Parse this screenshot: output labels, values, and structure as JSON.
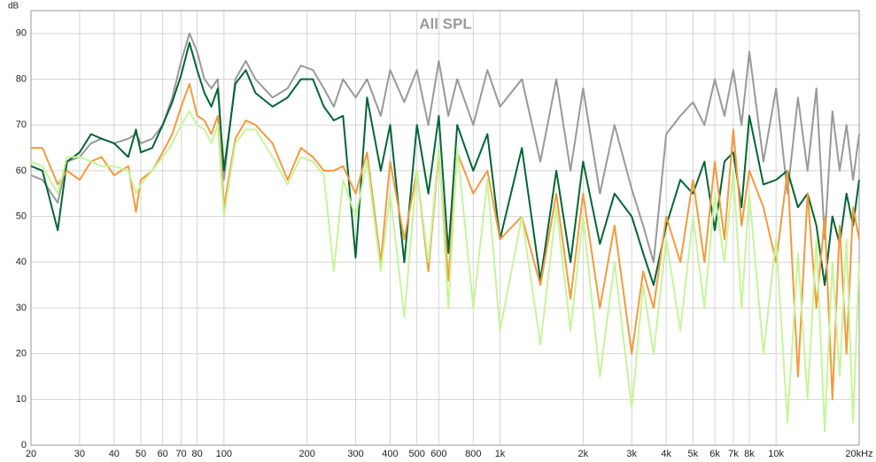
{
  "chart_data": {
    "type": "line",
    "title": "All SPL",
    "y_label": "dB",
    "x": [
      20,
      22,
      25,
      27,
      30,
      33,
      36,
      40,
      45,
      48,
      50,
      55,
      60,
      65,
      70,
      75,
      80,
      85,
      90,
      95,
      100,
      110,
      120,
      130,
      150,
      170,
      190,
      210,
      230,
      250,
      270,
      300,
      330,
      370,
      400,
      450,
      500,
      550,
      600,
      650,
      700,
      800,
      900,
      1000,
      1200,
      1400,
      1600,
      1800,
      2000,
      2300,
      2600,
      3000,
      3300,
      3600,
      4000,
      4500,
      5000,
      5500,
      6000,
      6500,
      7000,
      7500,
      8000,
      9000,
      10000,
      11000,
      12000,
      13000,
      14000,
      15000,
      16000,
      17000,
      18000,
      19000,
      20000
    ],
    "series": [
      {
        "color": "#999999",
        "values": [
          59,
          58,
          53,
          62,
          63,
          66,
          67,
          66,
          67,
          68,
          66,
          67,
          70,
          76,
          84,
          90,
          86,
          80,
          78,
          80,
          58,
          80,
          84,
          80,
          76,
          78,
          83,
          82,
          78,
          74,
          80,
          76,
          80,
          72,
          82,
          75,
          82,
          70,
          84,
          72,
          80,
          70,
          82,
          74,
          80,
          62,
          80,
          60,
          78,
          55,
          70,
          56,
          48,
          40,
          68,
          72,
          75,
          70,
          80,
          72,
          82,
          70,
          86,
          62,
          78,
          55,
          76,
          60,
          78,
          45,
          73,
          60,
          70,
          58,
          68
        ]
      },
      {
        "color": "#006633",
        "values": [
          61,
          60,
          47,
          62,
          64,
          68,
          67,
          66,
          63,
          69,
          64,
          65,
          70,
          75,
          81,
          88,
          82,
          77,
          74,
          78,
          60,
          79,
          82,
          77,
          74,
          76,
          80,
          80,
          74,
          71,
          72,
          41,
          76,
          60,
          70,
          40,
          70,
          55,
          72,
          42,
          70,
          60,
          68,
          45,
          65,
          36,
          60,
          40,
          62,
          44,
          55,
          50,
          42,
          35,
          48,
          58,
          55,
          62,
          47,
          62,
          64,
          52,
          72,
          57,
          58,
          60,
          52,
          55,
          48,
          35,
          50,
          44,
          55,
          48,
          58
        ]
      },
      {
        "color": "#f39a3c",
        "values": [
          65,
          65,
          57,
          60,
          58,
          62,
          63,
          59,
          61,
          51,
          58,
          60,
          64,
          68,
          74,
          79,
          72,
          71,
          68,
          72,
          52,
          67,
          71,
          70,
          66,
          58,
          65,
          63,
          60,
          60,
          61,
          55,
          64,
          40,
          62,
          45,
          60,
          38,
          64,
          36,
          64,
          55,
          60,
          45,
          50,
          35,
          55,
          32,
          55,
          30,
          48,
          20,
          38,
          30,
          50,
          40,
          58,
          40,
          62,
          45,
          69,
          48,
          60,
          52,
          40,
          60,
          15,
          55,
          30,
          50,
          10,
          48,
          20,
          52,
          45
        ]
      },
      {
        "color": "#c6f59a",
        "values": [
          62,
          61,
          55,
          63,
          63,
          62,
          61,
          61,
          60,
          55,
          57,
          60,
          63,
          66,
          70,
          73,
          70,
          69,
          66,
          70,
          50,
          66,
          69,
          69,
          63,
          57,
          63,
          62,
          59,
          38,
          58,
          50,
          62,
          38,
          55,
          28,
          60,
          40,
          65,
          30,
          65,
          30,
          58,
          25,
          50,
          22,
          52,
          25,
          50,
          15,
          40,
          8,
          35,
          20,
          45,
          25,
          50,
          30,
          55,
          40,
          60,
          30,
          55,
          20,
          45,
          5,
          42,
          10,
          45,
          3,
          40,
          15,
          45,
          5,
          40
        ]
      }
    ],
    "xlim": [
      20,
      20000
    ],
    "log_x": true,
    "ylim": [
      0,
      95
    ],
    "xticks": [
      20,
      30,
      40,
      50,
      60,
      70,
      80,
      100,
      200,
      300,
      400,
      500,
      600,
      800,
      {
        "value": 1000,
        "label": "1k"
      },
      {
        "value": 2000,
        "label": "2k"
      },
      {
        "value": 3000,
        "label": "3k"
      },
      {
        "value": 4000,
        "label": "4k"
      },
      {
        "value": 5000,
        "label": "5k"
      },
      {
        "value": 6000,
        "label": "6k"
      },
      {
        "value": 7000,
        "label": "7k"
      },
      {
        "value": 8000,
        "label": "8k"
      },
      {
        "value": 10000,
        "label": "10k"
      },
      {
        "value": 20000,
        "label": "20kHz"
      }
    ],
    "yticks": [
      0,
      10,
      20,
      30,
      40,
      50,
      60,
      70,
      80,
      90
    ],
    "grid": true
  }
}
